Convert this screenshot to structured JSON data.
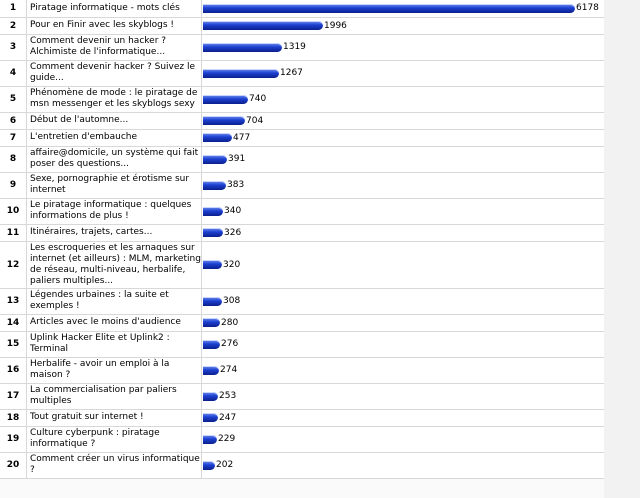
{
  "chart_data": {
    "type": "bar",
    "orientation": "horizontal",
    "ranks": [
      "1",
      "2",
      "3",
      "4",
      "5",
      "6",
      "7",
      "8",
      "9",
      "10",
      "11",
      "12",
      "13",
      "14",
      "15",
      "16",
      "17",
      "18",
      "19",
      "20"
    ],
    "categories": [
      "Piratage informatique - mots clés",
      "Pour en Finir avec les skyblogs !",
      "Comment devenir un hacker ? Alchimiste de l'informatique...",
      "Comment devenir hacker ? Suivez le guide...",
      "Phénomène de mode : le piratage de msn messenger et les skyblogs sexy",
      "Début de l'automne...",
      "L'entretien d'embauche",
      "affaire@domicile, un système qui fait poser des questions...",
      "Sexe, pornographie et érotisme sur internet",
      "Le piratage informatique : quelques informations de plus !",
      "Itinéraires, trajets, cartes...",
      "Les escroqueries et les arnaques sur internet (et ailleurs) : MLM, marketing de réseau, multi-niveau, herbalife, paliers multiples...",
      "Légendes urbaines : la suite et exemples !",
      "Articles avec le moins d'audience",
      "Uplink Hacker Elite et Uplink2 : Terminal",
      "Herbalife - avoir un emploi à la maison ?",
      "La commercialisation par paliers multiples",
      "Tout gratuit sur internet !",
      "Culture cyberpunk : piratage informatique ?",
      "Comment créer un virus informatique ?"
    ],
    "values": [
      6178,
      1996,
      1319,
      1267,
      740,
      704,
      477,
      391,
      383,
      340,
      326,
      320,
      308,
      280,
      276,
      274,
      253,
      247,
      229,
      202
    ],
    "value_labels": [
      "6178",
      "1996",
      "1319",
      "1267",
      "740",
      "704",
      "477",
      "391",
      "383",
      "340",
      "326",
      "320",
      "308",
      "280",
      "276",
      "274",
      "253",
      "247",
      "229",
      "202"
    ],
    "bar_color": "#1c3fcf",
    "xlim": [
      0,
      6178
    ],
    "grid": false
  }
}
